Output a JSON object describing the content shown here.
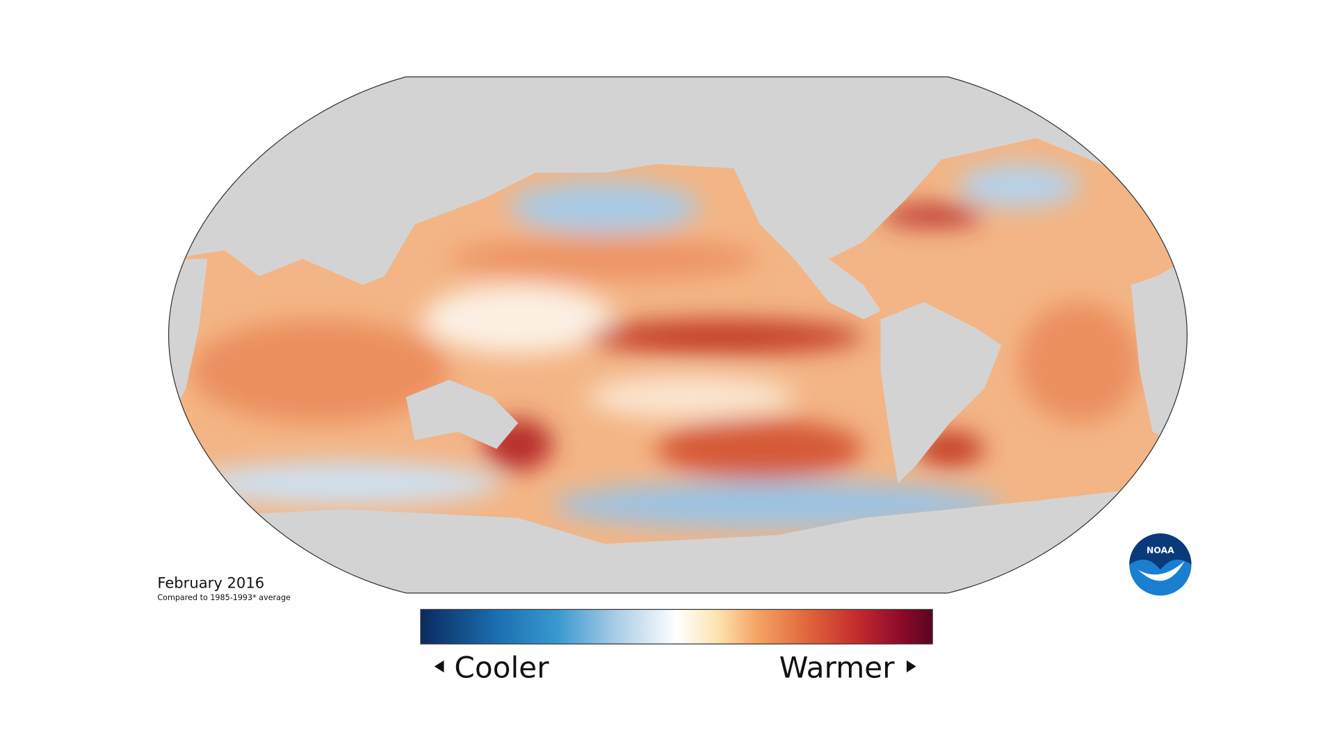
{
  "map": {
    "date": "February 2016",
    "baseline": "Compared to 1985-1993* average"
  },
  "legend": {
    "low": "Cooler",
    "high": "Warmer"
  },
  "logo": "NOAA"
}
